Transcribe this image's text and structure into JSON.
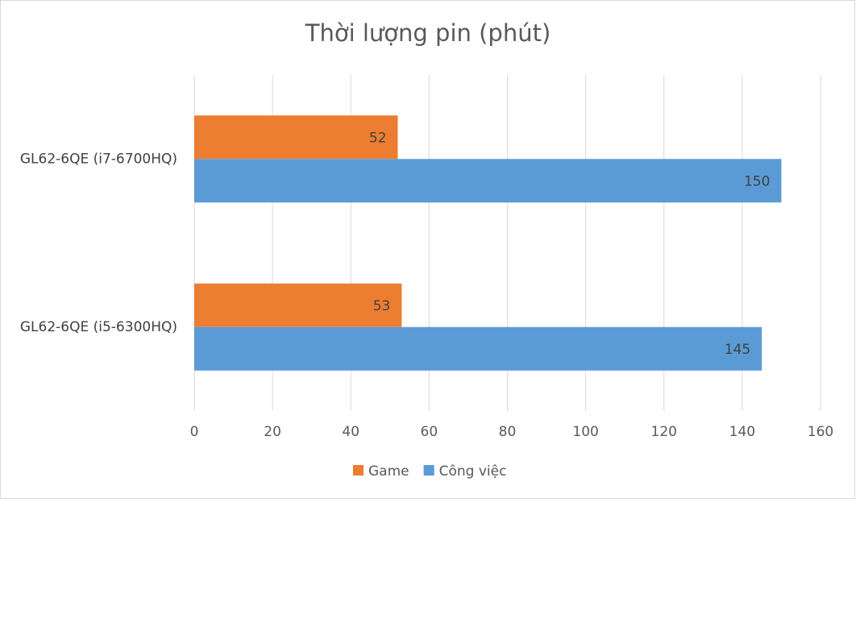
{
  "chart_data": {
    "type": "hbar",
    "title": "Thời lượng pin (phút)",
    "categories": [
      "GL62-6QE (i7-6700HQ)",
      "GL62-6QE (i5-6300HQ)"
    ],
    "series": [
      {
        "name": "Game",
        "color": "#ed7d31",
        "values": [
          52,
          53
        ]
      },
      {
        "name": "Công việc",
        "color": "#5b9bd5",
        "values": [
          150,
          145
        ]
      }
    ],
    "xlim": [
      0,
      160
    ],
    "xticks": [
      0,
      20,
      40,
      60,
      80,
      100,
      120,
      140,
      160
    ],
    "grid": true,
    "legend": "bottom"
  }
}
